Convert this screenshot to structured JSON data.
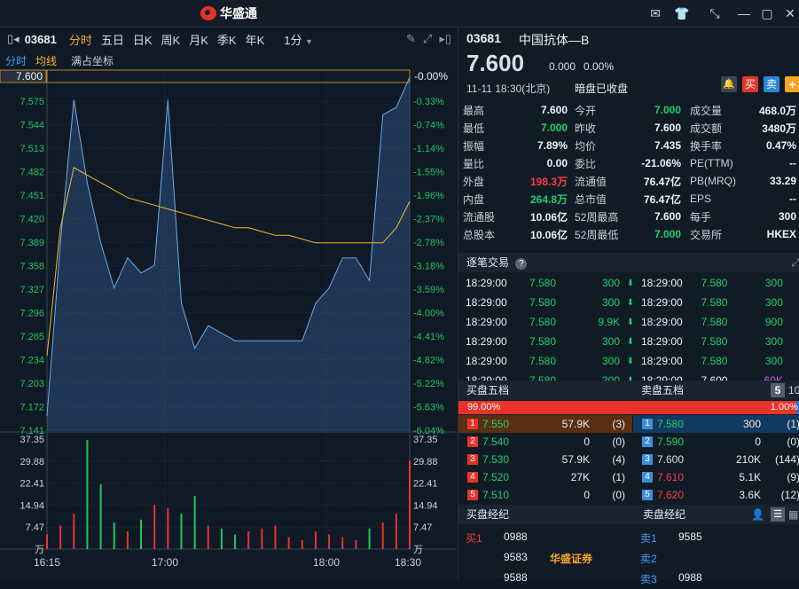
{
  "app": {
    "name": "华盛通"
  },
  "left": {
    "symbol": "03681",
    "tabs": [
      "分时",
      "五日",
      "日K",
      "周K",
      "月K",
      "季K",
      "年K"
    ],
    "interval": "1分",
    "subtabs": [
      "分时",
      "均线",
      "满占坐标"
    ],
    "price_label": "7.600",
    "pct_label": "-0.00%",
    "y_labels": [
      "7.575",
      "7.544",
      "7.513",
      "7.482",
      "7.451",
      "7.420",
      "7.389",
      "7.358",
      "7.327",
      "7.296",
      "7.265",
      "7.234",
      "7.203",
      "7.172",
      "7.141"
    ],
    "pct_labels": [
      "-0.33%",
      "-0.74%",
      "-1.14%",
      "-1.55%",
      "-1.96%",
      "-2.37%",
      "-2.78%",
      "-3.18%",
      "-3.59%",
      "-4.00%",
      "-4.41%",
      "-4.82%",
      "-5.22%",
      "-5.63%",
      "-6.04%"
    ],
    "vol_labels_left": [
      "37.35",
      "29.88",
      "22.41",
      "14.94",
      "7.47",
      "万"
    ],
    "vol_labels_right": [
      "37.35",
      "29.88",
      "22.41",
      "14.94",
      "7.47",
      "万"
    ],
    "x_labels": [
      "16:15",
      "17:00",
      "18:00",
      "18:30"
    ]
  },
  "chart_data": {
    "type": "line",
    "title": "",
    "xlabel": "",
    "ylabel": "",
    "x": [
      "16:15",
      "16:20",
      "16:25",
      "16:30",
      "16:35",
      "16:40",
      "16:45",
      "16:50",
      "16:55",
      "17:00",
      "17:05",
      "17:10",
      "17:15",
      "17:20",
      "17:25",
      "17:30",
      "17:35",
      "17:40",
      "17:45",
      "17:50",
      "17:55",
      "18:00",
      "18:05",
      "18:10",
      "18:15",
      "18:20",
      "18:25",
      "18:30"
    ],
    "series": [
      {
        "values": [
          7.15,
          7.38,
          7.57,
          7.46,
          7.38,
          7.32,
          7.36,
          7.34,
          7.35,
          7.57,
          7.3,
          7.24,
          7.27,
          7.26,
          7.25,
          7.25,
          7.25,
          7.25,
          7.25,
          7.25,
          7.3,
          7.32,
          7.36,
          7.36,
          7.33,
          7.55,
          7.56,
          7.6
        ]
      },
      {
        "values": [
          7.23,
          7.4,
          7.48,
          7.47,
          7.46,
          7.45,
          7.44,
          7.435,
          7.43,
          7.425,
          7.42,
          7.415,
          7.41,
          7.405,
          7.4,
          7.4,
          7.395,
          7.39,
          7.39,
          7.385,
          7.38,
          7.38,
          7.38,
          7.38,
          7.38,
          7.38,
          7.4,
          7.435
        ]
      }
    ],
    "ylim": [
      7.13,
      7.6
    ],
    "volume": {
      "ylim": [
        0,
        37.35
      ],
      "values": [
        5,
        8,
        12,
        37,
        22,
        9,
        6,
        10,
        15,
        14,
        12,
        18,
        8,
        7,
        5,
        6,
        7,
        8,
        4,
        3,
        6,
        5,
        4,
        3,
        7,
        9,
        12,
        30
      ]
    }
  },
  "right": {
    "symbol": "03681",
    "name": "中国抗体—B",
    "price": "7.600",
    "change": "0.000",
    "change_pct": "0.00%",
    "datetime": "11-11  18:30(北京)",
    "status": "暗盘已收盘",
    "buy_label": "买",
    "sell_label": "卖",
    "stats": [
      [
        "最高",
        "7.600",
        "今开",
        "7.000",
        "成交量",
        "468.0万"
      ],
      [
        "最低",
        "7.000",
        "昨收",
        "7.600",
        "成交额",
        "3480万"
      ],
      [
        "振幅",
        "7.89%",
        "均价",
        "7.435",
        "换手率",
        "0.47%"
      ],
      [
        "量比",
        "0.00",
        "委比",
        "-21.06%",
        "PE(TTM)",
        "--"
      ],
      [
        "外盘",
        "198.3万",
        "流通值",
        "76.47亿",
        "PB(MRQ)",
        "33.29"
      ],
      [
        "内盘",
        "264.8万",
        "总市值",
        "76.47亿",
        "EPS",
        "--"
      ],
      [
        "流通股",
        "10.06亿",
        "52周最高",
        "7.600",
        "每手",
        "300"
      ],
      [
        "总股本",
        "10.06亿",
        "52周最低",
        "7.000",
        "交易所",
        "HKEX"
      ]
    ],
    "ticks_title": "逐笔交易",
    "ticks_left": [
      [
        "18:29:00",
        "7.580",
        "300"
      ],
      [
        "18:29:00",
        "7.580",
        "300"
      ],
      [
        "18:29:00",
        "7.580",
        "9.9K"
      ],
      [
        "18:29:00",
        "7.580",
        "300"
      ],
      [
        "18:29:00",
        "7.580",
        "300"
      ],
      [
        "18:29:00",
        "7.580",
        "300"
      ]
    ],
    "ticks_right": [
      [
        "18:29:00",
        "7.580",
        "300"
      ],
      [
        "18:29:00",
        "7.580",
        "300"
      ],
      [
        "18:29:00",
        "7.580",
        "900"
      ],
      [
        "18:29:00",
        "7.580",
        "300"
      ],
      [
        "18:29:00",
        "7.580",
        "300"
      ],
      [
        "18:29:00",
        "7.600",
        "60K"
      ]
    ],
    "bid_title": "买盘五档",
    "ask_title": "卖盘五档",
    "depth_select": "5",
    "depth_alt": "10",
    "bid_ratio": "99.00%",
    "ask_ratio": "1.00%",
    "bids": [
      [
        "1",
        "7.550",
        "57.9K",
        "(3)"
      ],
      [
        "2",
        "7.540",
        "0",
        "(0)"
      ],
      [
        "3",
        "7.530",
        "57.9K",
        "(4)"
      ],
      [
        "4",
        "7.520",
        "27K",
        "(1)"
      ],
      [
        "5",
        "7.510",
        "0",
        "(0)"
      ]
    ],
    "asks": [
      [
        "1",
        "7.580",
        "300",
        "(1)"
      ],
      [
        "2",
        "7.590",
        "0",
        "(0)"
      ],
      [
        "3",
        "7.600",
        "210K",
        "(144)"
      ],
      [
        "4",
        "7.610",
        "5.1K",
        "(9)"
      ],
      [
        "5",
        "7.620",
        "3.6K",
        "(12)"
      ]
    ],
    "bid_broker_title": "买盘经纪",
    "ask_broker_title": "卖盘经纪",
    "bid_brokers": [
      [
        "买1",
        "0988",
        ""
      ],
      [
        "",
        "9583",
        "华盛证券"
      ],
      [
        "",
        "9588",
        ""
      ]
    ],
    "ask_brokers": [
      [
        "卖1",
        "9585"
      ],
      [
        "卖2",
        ""
      ],
      [
        "卖3",
        "0988"
      ]
    ]
  }
}
